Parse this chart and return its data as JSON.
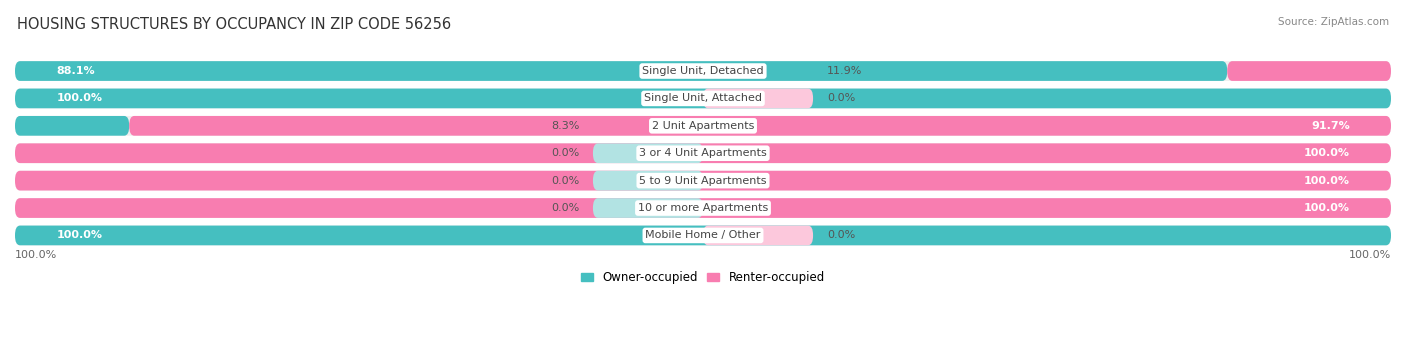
{
  "title": "HOUSING STRUCTURES BY OCCUPANCY IN ZIP CODE 56256",
  "source": "Source: ZipAtlas.com",
  "categories": [
    "Single Unit, Detached",
    "Single Unit, Attached",
    "2 Unit Apartments",
    "3 or 4 Unit Apartments",
    "5 to 9 Unit Apartments",
    "10 or more Apartments",
    "Mobile Home / Other"
  ],
  "owner_pct": [
    88.1,
    100.0,
    8.3,
    0.0,
    0.0,
    0.0,
    100.0
  ],
  "renter_pct": [
    11.9,
    0.0,
    91.7,
    100.0,
    100.0,
    100.0,
    0.0
  ],
  "owner_color": "#45bfc0",
  "renter_color": "#f87db0",
  "owner_color_light": "#b2e3e3",
  "renter_color_light": "#fcc8dc",
  "row_bg": "#efefef",
  "background_color": "#ffffff",
  "label_fontsize": 8.0,
  "title_fontsize": 10.5,
  "source_fontsize": 7.5,
  "legend_fontsize": 8.5
}
